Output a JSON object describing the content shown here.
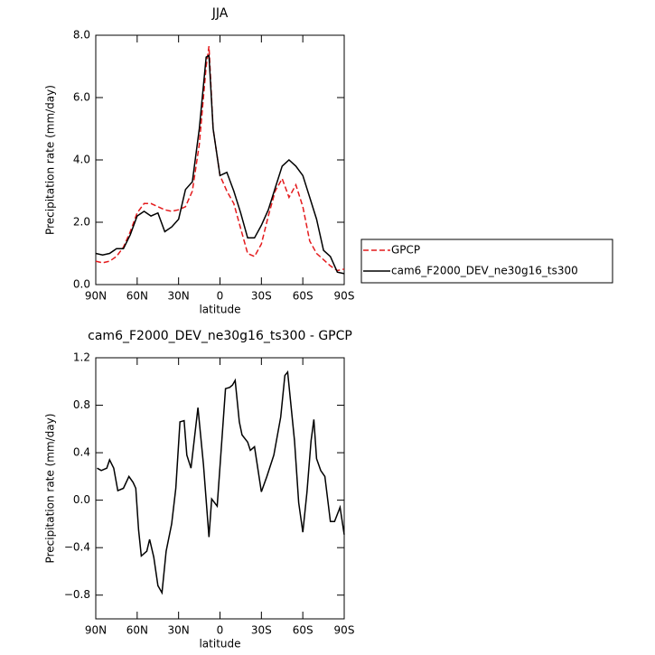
{
  "chart_data": [
    {
      "type": "line",
      "title": "JJA",
      "ylabel": "Precipitation rate (mm/day)",
      "xlabel": "latitude",
      "x": [
        90,
        85,
        80,
        75,
        70,
        65,
        60,
        55,
        50,
        45,
        40,
        35,
        30,
        25,
        20,
        15,
        10,
        8,
        5,
        0,
        -5,
        -10,
        -15,
        -20,
        -25,
        -30,
        -35,
        -40,
        -45,
        -50,
        -55,
        -60,
        -65,
        -70,
        -75,
        -80,
        -85,
        -90
      ],
      "series": [
        {
          "name": "GPCP",
          "color": "#e41a1c",
          "line_style": "dashed",
          "values": [
            0.75,
            0.7,
            0.75,
            0.9,
            1.2,
            1.7,
            2.3,
            2.6,
            2.6,
            2.5,
            2.4,
            2.35,
            2.4,
            2.5,
            3.0,
            4.5,
            7.0,
            7.65,
            5.0,
            3.5,
            3.0,
            2.6,
            1.8,
            1.0,
            0.9,
            1.3,
            2.2,
            3.0,
            3.4,
            2.8,
            3.2,
            2.5,
            1.4,
            1.0,
            0.8,
            0.6,
            0.45,
            0.5
          ]
        },
        {
          "name": "cam6_F2000_DEV_ne30g16_ts300",
          "color": "#000000",
          "line_style": "solid",
          "values": [
            1.0,
            0.95,
            1.0,
            1.15,
            1.15,
            1.6,
            2.2,
            2.35,
            2.2,
            2.3,
            1.7,
            1.85,
            2.1,
            3.05,
            3.3,
            5.0,
            7.3,
            7.35,
            5.0,
            3.5,
            3.6,
            3.0,
            2.3,
            1.5,
            1.5,
            1.9,
            2.4,
            3.1,
            3.8,
            4.0,
            3.8,
            3.5,
            2.8,
            2.1,
            1.1,
            0.9,
            0.4,
            0.35
          ]
        }
      ],
      "xlim": [
        90,
        -90
      ],
      "xticks": [
        {
          "value": 90,
          "label": "90N"
        },
        {
          "value": 60,
          "label": "60N"
        },
        {
          "value": 30,
          "label": "30N"
        },
        0,
        {
          "value": -30,
          "label": "30S"
        },
        {
          "value": -60,
          "label": "60S"
        },
        {
          "value": -90,
          "label": "90S"
        }
      ],
      "ylim": [
        0,
        8
      ],
      "yticks": [
        {
          "value": 0,
          "label": "0.0"
        },
        {
          "value": 2,
          "label": "2.0"
        },
        {
          "value": 4,
          "label": "4.0"
        },
        {
          "value": 6,
          "label": "6.0"
        },
        {
          "value": 8,
          "label": "8.0"
        }
      ],
      "legend": "outside-right-bottom"
    },
    {
      "type": "line",
      "title": "cam6_F2000_DEV_ne30g16_ts300 - GPCP",
      "ylabel": "Precipitation rate (mm/day)",
      "xlabel": "latitude",
      "x": [
        89,
        86,
        82,
        80,
        77,
        74,
        70,
        66,
        63,
        61,
        59,
        57,
        53,
        51,
        48,
        45,
        42,
        39,
        35,
        32,
        29,
        26,
        24,
        21,
        16,
        12,
        8,
        6,
        2,
        -4,
        -7,
        -9,
        -11,
        -14,
        -16,
        -20,
        -22,
        -25,
        -30,
        -34,
        -39,
        -44,
        -47,
        -49,
        -51,
        -54,
        -57,
        -60,
        -63,
        -66,
        -68,
        -70,
        -73,
        -76,
        -80,
        -83,
        -87,
        -90
      ],
      "series": [
        {
          "color": "#000000",
          "line_style": "solid",
          "values": [
            0.27,
            0.25,
            0.27,
            0.34,
            0.27,
            0.08,
            0.1,
            0.2,
            0.15,
            0.1,
            -0.25,
            -0.47,
            -0.43,
            -0.33,
            -0.48,
            -0.72,
            -0.78,
            -0.43,
            -0.2,
            0.1,
            0.66,
            0.67,
            0.38,
            0.27,
            0.78,
            0.3,
            -0.31,
            0.01,
            -0.05,
            0.94,
            0.95,
            0.97,
            1.01,
            0.66,
            0.55,
            0.49,
            0.42,
            0.45,
            0.07,
            0.2,
            0.38,
            0.7,
            1.05,
            1.08,
            0.85,
            0.5,
            -0.02,
            -0.27,
            0.07,
            0.5,
            0.68,
            0.35,
            0.25,
            0.2,
            -0.18,
            -0.18,
            -0.06,
            -0.29
          ]
        }
      ],
      "xlim": [
        90,
        -90
      ],
      "xticks": [
        {
          "value": 90,
          "label": "90N"
        },
        {
          "value": 60,
          "label": "60N"
        },
        {
          "value": 30,
          "label": "30N"
        },
        0,
        {
          "value": -30,
          "label": "30S"
        },
        {
          "value": -60,
          "label": "60S"
        },
        {
          "value": -90,
          "label": "90S"
        }
      ],
      "ylim": [
        -1.0,
        1.2
      ],
      "yticks": [
        {
          "value": -0.8,
          "label": "−0.8"
        },
        {
          "value": -0.4,
          "label": "−0.4"
        },
        {
          "value": 0,
          "label": "0.0"
        },
        0.4,
        0.8,
        1.2
      ]
    }
  ]
}
